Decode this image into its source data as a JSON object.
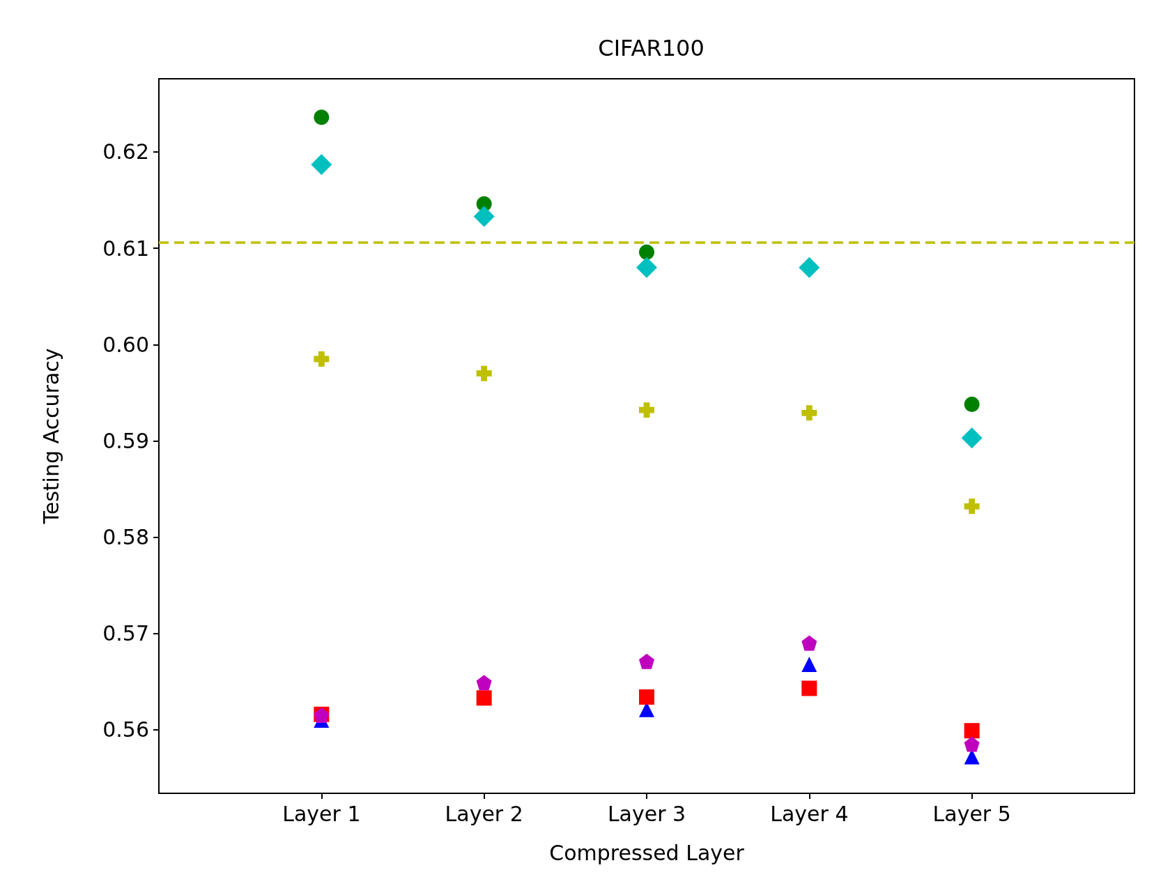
{
  "chart_data": {
    "type": "scatter",
    "title": "CIFAR100",
    "xlabel": "Compressed Layer",
    "ylabel": "Testing Accuracy",
    "categories": [
      "Layer 1",
      "Layer 2",
      "Layer 3",
      "Layer 4",
      "Layer 5"
    ],
    "series": [
      {
        "color": "#008000",
        "marker": "circle",
        "values": [
          0.6236,
          0.6146,
          0.6096,
          null,
          0.5938
        ]
      },
      {
        "color": "#00bfbf",
        "marker": "diamond",
        "values": [
          0.6187,
          0.6133,
          0.608,
          0.608,
          0.5903
        ]
      },
      {
        "color": "#bfbf00",
        "marker": "cross",
        "values": [
          0.5985,
          0.597,
          0.5932,
          0.5929,
          0.5832
        ]
      },
      {
        "color": "#0000ff",
        "marker": "triangle",
        "values": [
          0.561,
          null,
          0.5621,
          0.5668,
          0.5572
        ]
      },
      {
        "color": "#ff0000",
        "marker": "square",
        "values": [
          0.5616,
          0.5633,
          0.5634,
          0.5643,
          0.5599
        ]
      },
      {
        "color": "#bf00bf",
        "values": [
          0.5615,
          0.5649,
          0.5671,
          0.569,
          0.5585
        ]
      }
    ],
    "ylim": [
      0.5534,
      0.6276
    ],
    "yticks": [
      0.56,
      0.57,
      0.58,
      0.59,
      {
        "value": 0.6,
        "label": "0.60"
      },
      0.61,
      0.62
    ],
    "ref_lines": [
      {
        "axis": "y",
        "value": 0.6106,
        "color": "#bfbf00",
        "line_style": "dashed"
      }
    ],
    "grid": false
  }
}
